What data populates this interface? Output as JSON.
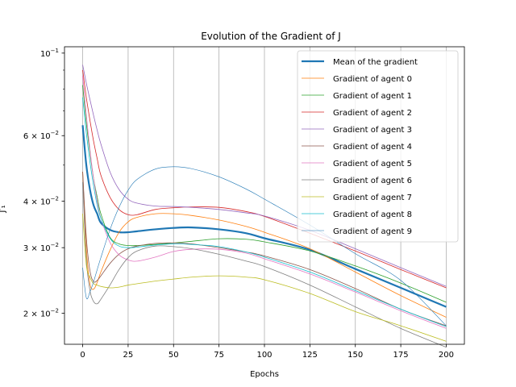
{
  "chart_data": {
    "type": "line",
    "title": "Evolution of the Gradient of J",
    "xlabel": "Epochs",
    "ylabel": "J′₁",
    "xlim": [
      -10,
      210
    ],
    "ylim": [
      0.0165,
      0.104
    ],
    "yscale": "log",
    "grid": "vertical",
    "legend_position": "top-right",
    "x_ticks": [
      0,
      25,
      50,
      75,
      100,
      125,
      150,
      175,
      200
    ],
    "y_ticks": [
      {
        "value": 0.02,
        "mantissa": "2",
        "base": "10",
        "exp": "−2"
      },
      {
        "value": 0.03,
        "mantissa": "3",
        "base": "10",
        "exp": "−2"
      },
      {
        "value": 0.04,
        "mantissa": "4",
        "base": "10",
        "exp": "−2"
      },
      {
        "value": 0.06,
        "mantissa": "6",
        "base": "10",
        "exp": "−2"
      },
      {
        "value": 0.1,
        "mantissa": "",
        "base": "10",
        "exp": "−1"
      }
    ],
    "x": [
      0,
      2,
      4,
      6,
      8,
      10,
      15,
      20,
      25,
      30,
      40,
      50,
      60,
      75,
      90,
      100,
      125,
      150,
      175,
      200
    ],
    "series": [
      {
        "name": "Mean of the gradient",
        "color": "#1f77b4",
        "width": 2.2,
        "values": [
          0.064,
          0.05,
          0.043,
          0.039,
          0.037,
          0.035,
          0.0335,
          0.033,
          0.033,
          0.0332,
          0.0336,
          0.0339,
          0.034,
          0.0336,
          0.0328,
          0.0318,
          0.0296,
          0.0263,
          0.0234,
          0.0208
        ]
      },
      {
        "name": "Gradient of agent 0",
        "color": "#ff7f0e",
        "width": 0.8,
        "values": [
          0.048,
          0.03,
          0.024,
          0.0232,
          0.0242,
          0.0258,
          0.0295,
          0.033,
          0.0352,
          0.0362,
          0.037,
          0.037,
          0.0366,
          0.0356,
          0.0342,
          0.033,
          0.0298,
          0.0258,
          0.0223,
          0.0195
        ]
      },
      {
        "name": "Gradient of agent 1",
        "color": "#2ca02c",
        "width": 0.8,
        "values": [
          0.082,
          0.065,
          0.054,
          0.046,
          0.041,
          0.037,
          0.032,
          0.0307,
          0.0304,
          0.0304,
          0.0306,
          0.0309,
          0.0312,
          0.0317,
          0.0316,
          0.0311,
          0.0294,
          0.0268,
          0.0241,
          0.0214
        ]
      },
      {
        "name": "Gradient of agent 2",
        "color": "#d62728",
        "width": 0.8,
        "values": [
          0.09,
          0.076,
          0.066,
          0.058,
          0.052,
          0.047,
          0.041,
          0.038,
          0.0368,
          0.0368,
          0.038,
          0.0384,
          0.0386,
          0.0385,
          0.0375,
          0.0364,
          0.0328,
          0.0294,
          0.0262,
          0.0234
        ]
      },
      {
        "name": "Gradient of agent 3",
        "color": "#9467bd",
        "width": 0.8,
        "values": [
          0.093,
          0.083,
          0.075,
          0.068,
          0.062,
          0.057,
          0.048,
          0.043,
          0.0405,
          0.0395,
          0.0388,
          0.0387,
          0.0385,
          0.038,
          0.0372,
          0.0365,
          0.0334,
          0.0298,
          0.0265,
          0.0236
        ]
      },
      {
        "name": "Gradient of agent 4",
        "color": "#8c564b",
        "width": 0.8,
        "values": [
          0.048,
          0.032,
          0.026,
          0.0243,
          0.0245,
          0.0252,
          0.0272,
          0.0288,
          0.0298,
          0.0303,
          0.0308,
          0.0309,
          0.0307,
          0.03,
          0.0292,
          0.0285,
          0.0262,
          0.0233,
          0.0205,
          0.0185
        ]
      },
      {
        "name": "Gradient of agent 5",
        "color": "#e377c2",
        "width": 0.8,
        "values": [
          0.087,
          0.068,
          0.055,
          0.046,
          0.04,
          0.036,
          0.031,
          0.0287,
          0.0278,
          0.0276,
          0.0283,
          0.0293,
          0.0297,
          0.0297,
          0.029,
          0.028,
          0.0255,
          0.0228,
          0.0203,
          0.0182
        ]
      },
      {
        "name": "Gradient of agent 6",
        "color": "#7f7f7f",
        "width": 0.8,
        "values": [
          0.045,
          0.028,
          0.023,
          0.0215,
          0.0212,
          0.0218,
          0.0238,
          0.0262,
          0.0282,
          0.0294,
          0.0303,
          0.0302,
          0.0298,
          0.0288,
          0.0276,
          0.0267,
          0.0238,
          0.0208,
          0.0182,
          0.0162
        ]
      },
      {
        "name": "Gradient of agent 7",
        "color": "#bcbd22",
        "width": 0.8,
        "values": [
          0.037,
          0.027,
          0.025,
          0.024,
          0.0238,
          0.0236,
          0.0234,
          0.0235,
          0.0238,
          0.024,
          0.0244,
          0.0247,
          0.025,
          0.0252,
          0.025,
          0.0246,
          0.0226,
          0.0202,
          0.0185,
          0.0168
        ]
      },
      {
        "name": "Gradient of agent 8",
        "color": "#17becf",
        "width": 0.8,
        "values": [
          0.076,
          0.061,
          0.051,
          0.044,
          0.039,
          0.036,
          0.0318,
          0.0303,
          0.03,
          0.0301,
          0.0305,
          0.0307,
          0.0306,
          0.0302,
          0.0292,
          0.0283,
          0.0258,
          0.023,
          0.0205,
          0.0184
        ]
      },
      {
        "name": "Gradient of agent 9",
        "color": "#1f77b4",
        "width": 0.6,
        "values": [
          0.0265,
          0.022,
          0.0228,
          0.0243,
          0.0262,
          0.0282,
          0.0335,
          0.0385,
          0.0428,
          0.0458,
          0.0488,
          0.0495,
          0.0489,
          0.0465,
          0.0431,
          0.0405,
          0.0345,
          0.0289,
          0.0245,
          0.0185
        ]
      }
    ]
  }
}
